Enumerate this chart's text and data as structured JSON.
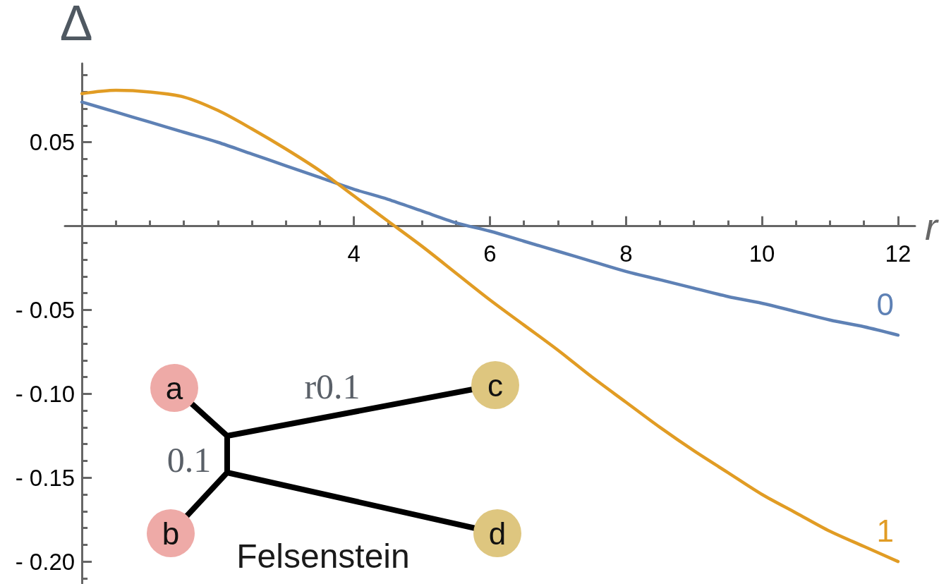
{
  "chart_data": {
    "type": "line",
    "xlabel": "r",
    "ylabel": "Δ",
    "marker": "none",
    "x": [
      0,
      0.5,
      1,
      1.5,
      2,
      2.5,
      3,
      3.5,
      4,
      4.5,
      5,
      5.5,
      6,
      6.5,
      7,
      7.5,
      8,
      8.5,
      9,
      9.5,
      10,
      10.5,
      11,
      11.5,
      12
    ],
    "series": [
      {
        "name": "0",
        "color": "#5e81b5",
        "values": [
          0.074,
          0.068,
          0.062,
          0.056,
          0.05,
          0.043,
          0.036,
          0.029,
          0.022,
          0.016,
          0.009,
          0.002,
          -0.003,
          -0.009,
          -0.015,
          -0.021,
          -0.027,
          -0.032,
          -0.037,
          -0.042,
          -0.046,
          -0.051,
          -0.056,
          -0.06,
          -0.065
        ]
      },
      {
        "name": "1",
        "color": "#e19c24",
        "values": [
          0.079,
          0.081,
          0.08,
          0.077,
          0.069,
          0.058,
          0.046,
          0.033,
          0.018,
          0.003,
          -0.012,
          -0.028,
          -0.044,
          -0.059,
          -0.074,
          -0.09,
          -0.105,
          -0.12,
          -0.134,
          -0.147,
          -0.16,
          -0.171,
          -0.182,
          -0.191,
          -0.2
        ]
      }
    ],
    "xlim": [
      -0.25,
      12.25
    ],
    "ylim": [
      -0.213,
      0.097
    ],
    "xticks": [
      {
        "value": 0.5,
        "label": null
      },
      {
        "value": 1,
        "label": null
      },
      {
        "value": 1.5,
        "label": null
      },
      {
        "value": 2,
        "label": null
      },
      {
        "value": 2.5,
        "label": null
      },
      {
        "value": 3,
        "label": null
      },
      {
        "value": 3.5,
        "label": null
      },
      4,
      {
        "value": 4.5,
        "label": null
      },
      {
        "value": 5,
        "label": null
      },
      {
        "value": 5.5,
        "label": null
      },
      6,
      {
        "value": 6.5,
        "label": null
      },
      {
        "value": 7,
        "label": null
      },
      {
        "value": 7.5,
        "label": null
      },
      8,
      {
        "value": 8.5,
        "label": null
      },
      {
        "value": 9,
        "label": null
      },
      {
        "value": 9.5,
        "label": null
      },
      10,
      {
        "value": 10.5,
        "label": null
      },
      {
        "value": 11,
        "label": null
      },
      {
        "value": 11.5,
        "label": null
      },
      12
    ],
    "yticks": [
      {
        "value": -0.21,
        "label": null
      },
      {
        "value": -0.2,
        "label": "- 0.20"
      },
      {
        "value": -0.19,
        "label": null
      },
      {
        "value": -0.18,
        "label": null
      },
      {
        "value": -0.17,
        "label": null
      },
      {
        "value": -0.16,
        "label": null
      },
      {
        "value": -0.15,
        "label": "- 0.15"
      },
      {
        "value": -0.14,
        "label": null
      },
      {
        "value": -0.13,
        "label": null
      },
      {
        "value": -0.12,
        "label": null
      },
      {
        "value": -0.11,
        "label": null
      },
      {
        "value": -0.1,
        "label": "- 0.10"
      },
      {
        "value": -0.09,
        "label": null
      },
      {
        "value": -0.08,
        "label": null
      },
      {
        "value": -0.07,
        "label": null
      },
      {
        "value": -0.06,
        "label": null
      },
      {
        "value": -0.05,
        "label": "- 0.05"
      },
      {
        "value": -0.04,
        "label": null
      },
      {
        "value": -0.03,
        "label": null
      },
      {
        "value": -0.02,
        "label": null
      },
      {
        "value": -0.01,
        "label": null
      },
      {
        "value": 0.01,
        "label": null
      },
      {
        "value": 0.02,
        "label": null
      },
      {
        "value": 0.03,
        "label": null
      },
      {
        "value": 0.04,
        "label": null
      },
      0.05,
      {
        "value": 0.06,
        "label": null
      },
      {
        "value": 0.07,
        "label": null
      },
      {
        "value": 0.08,
        "label": null
      },
      {
        "value": 0.09,
        "label": null
      }
    ],
    "annotations": [
      "a",
      "b",
      "c",
      "d",
      "r0.1",
      "0.1",
      "Felsenstein"
    ]
  }
}
